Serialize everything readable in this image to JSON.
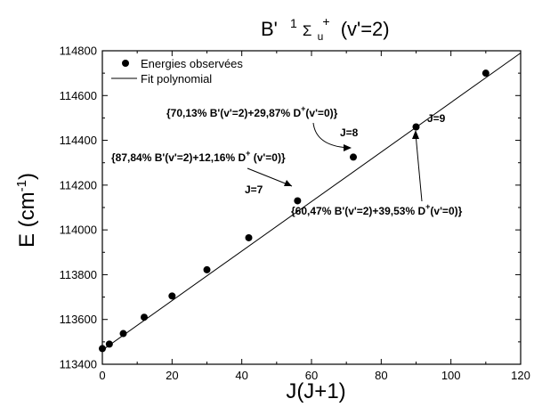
{
  "chart_data": {
    "type": "scatter",
    "title": {
      "prefix": "B'",
      "sup1": "1",
      "sigma": "Σ",
      "sub_u": "u",
      "sup_plus": "+",
      "suffix": "(v'=2)"
    },
    "xlabel": "J(J+1)",
    "ylabel": {
      "base": "E (cm",
      "sup": "-1",
      "close": ")"
    },
    "xlim": [
      0,
      120
    ],
    "ylim": [
      113400,
      114800
    ],
    "xticks": [
      0,
      20,
      40,
      60,
      80,
      100,
      120
    ],
    "yticks": [
      113400,
      113600,
      113800,
      114000,
      114200,
      114400,
      114600,
      114800
    ],
    "legend": {
      "position": "top-left",
      "entries": [
        "Energies observées",
        "Fit polynomial"
      ]
    },
    "series": [
      {
        "name": "Energies observées",
        "kind": "points",
        "x": [
          0,
          2,
          6,
          12,
          20,
          30,
          42,
          56,
          72,
          90,
          110
        ],
        "y": [
          113470,
          113490,
          113537,
          113610,
          113705,
          113822,
          113965,
          114130,
          114325,
          114460,
          114700
        ]
      },
      {
        "name": "Fit polynomial",
        "kind": "line",
        "x": [
          0,
          120
        ],
        "y": [
          113463,
          114790
        ]
      }
    ],
    "annotations": [
      {
        "label": "J=7",
        "text": "{87,84% B'(v'=2)+12,16% D",
        "sup": "+",
        "tail": " (v'=0)}"
      },
      {
        "label": "J=8",
        "text": "{70,13% B'(v'=2)+29,87% D",
        "sup": "+",
        "tail": "(v'=0)}"
      },
      {
        "label": "J=9",
        "text": "{60,47% B'(v'=2)+39,53% D",
        "sup": "+",
        "tail": "(v'=0)}"
      }
    ]
  }
}
